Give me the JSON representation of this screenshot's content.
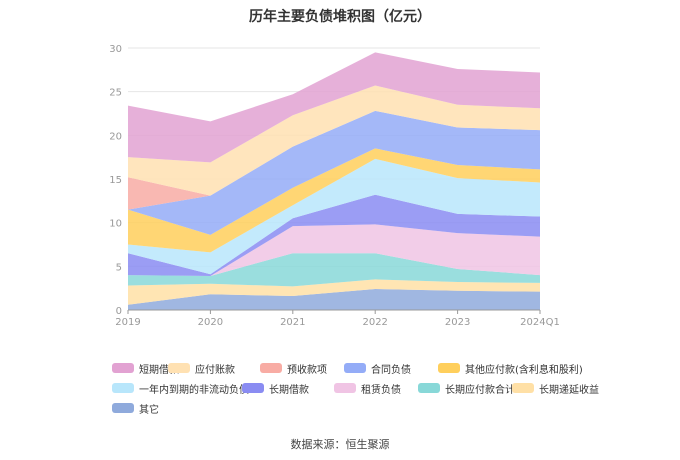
{
  "chart_data": {
    "type": "area",
    "stacked": true,
    "title": "历年主要负债堆积图（亿元）",
    "source": "数据来源：恒生聚源",
    "categories": [
      "2019",
      "2020",
      "2021",
      "2022",
      "2023",
      "2024Q1"
    ],
    "ylim": [
      0,
      30
    ],
    "yticks": [
      0,
      5,
      10,
      15,
      20,
      25,
      30
    ],
    "grid": true,
    "legend_position": "bottom",
    "series": [
      {
        "name": "其它",
        "color": "#8faadc",
        "values": [
          0.6,
          1.8,
          1.6,
          2.4,
          2.2,
          2.1
        ]
      },
      {
        "name": "长期递延收益",
        "color": "#ffe0a6",
        "values": [
          2.2,
          1.2,
          1.1,
          1.1,
          1.0,
          1.0
        ]
      },
      {
        "name": "长期应付款合计",
        "color": "#88d8d8",
        "values": [
          1.2,
          0.9,
          3.8,
          3.0,
          1.5,
          0.9
        ]
      },
      {
        "name": "租赁负债",
        "color": "#f0c4e4",
        "values": [
          0.0,
          0.0,
          3.1,
          3.3,
          4.1,
          4.4
        ]
      },
      {
        "name": "长期借款",
        "color": "#8a8cf2",
        "values": [
          2.5,
          0.2,
          0.9,
          3.4,
          2.2,
          2.3
        ]
      },
      {
        "name": "一年内到期的非流动负债",
        "color": "#b8e6fb",
        "values": [
          1.0,
          2.5,
          1.5,
          4.1,
          4.1,
          3.9
        ]
      },
      {
        "name": "其他应付款(含利息和股利)",
        "color": "#ffcf5c",
        "values": [
          4.0,
          2.0,
          2.0,
          1.2,
          1.5,
          1.5
        ]
      },
      {
        "name": "合同负债",
        "color": "#94acf7",
        "values": [
          0.0,
          4.5,
          4.7,
          4.3,
          4.3,
          4.5
        ]
      },
      {
        "name": "预收款项",
        "color": "#f8aca4",
        "values": [
          3.7,
          0.0,
          0.0,
          0.0,
          0.0,
          0.0
        ]
      },
      {
        "name": "应付账款",
        "color": "#ffe1b2",
        "values": [
          2.3,
          3.8,
          3.6,
          2.9,
          2.6,
          2.5
        ]
      },
      {
        "name": "短期借款",
        "color": "#e2a2d2",
        "values": [
          5.9,
          4.7,
          2.4,
          3.8,
          4.1,
          4.1
        ]
      }
    ]
  }
}
